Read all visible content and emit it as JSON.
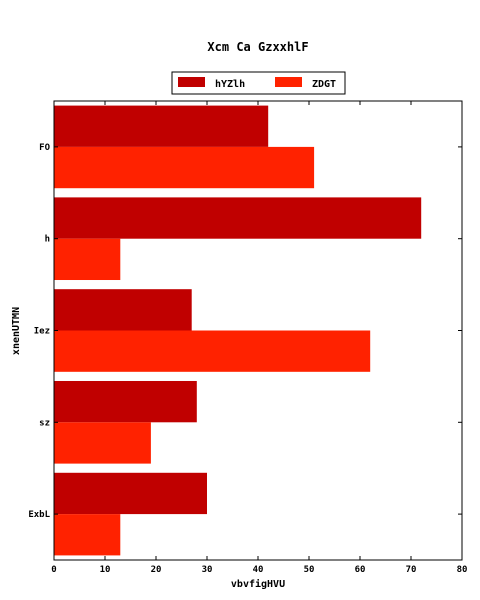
{
  "chart_data": {
    "type": "bar",
    "orientation": "horizontal",
    "title": "Xcm Ca GzxxhlF",
    "xlabel": "vbvfigHVU",
    "ylabel": "xnenUTMN",
    "categories": [
      "FO",
      "h",
      "Iez",
      "sz",
      "ExbL"
    ],
    "series": [
      {
        "name": "hYZlh",
        "color": "#c00000",
        "values": [
          42,
          72,
          27,
          28,
          30
        ]
      },
      {
        "name": "ZDGT",
        "color": "#ff2200",
        "values": [
          51,
          13,
          62,
          19,
          13
        ]
      }
    ],
    "xlim": [
      0,
      80
    ],
    "xticks": [
      0,
      10,
      20,
      30,
      40,
      50,
      60,
      70,
      80
    ],
    "grid": false,
    "legend_position": "top-center"
  }
}
